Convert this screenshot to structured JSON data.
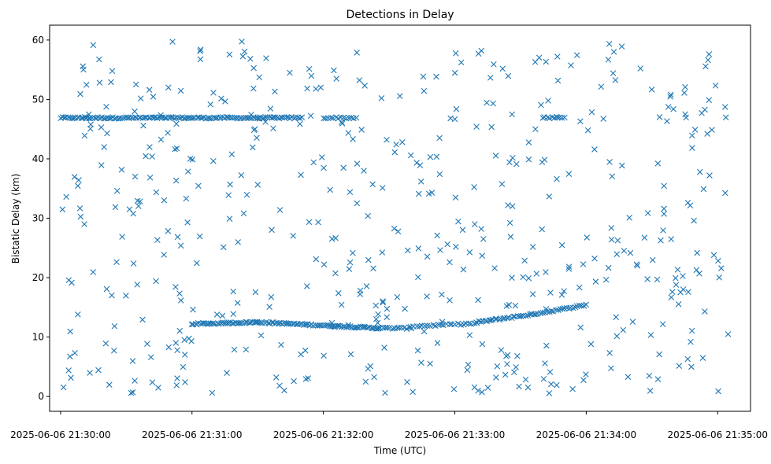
{
  "chart_data": {
    "type": "scatter",
    "title": "Detections in Delay",
    "xlabel": "Time (UTC)",
    "ylabel": "Bistatic Delay (km)",
    "marker": "x",
    "color": "#1f77b4",
    "grid": false,
    "xlim": [
      "2025-06-06 21:29:55",
      "2025-06-06 21:35:15"
    ],
    "ylim": [
      -2.5,
      62.5
    ],
    "xticks": [
      "2025-06-06 21:30:00",
      "2025-06-06 21:31:00",
      "2025-06-06 21:32:00",
      "2025-06-06 21:33:00",
      "2025-06-06 21:34:00",
      "2025-06-06 21:35:00"
    ],
    "yticks": [
      0,
      10,
      20,
      30,
      40,
      50,
      60
    ],
    "series": [
      {
        "tracks": [
          {
            "from": "2025-06-06 21:30:00",
            "to": "2025-06-06 21:31:50",
            "y_start": 46.9,
            "y_end": 46.9,
            "count": 130
          },
          {
            "from": "2025-06-06 21:32:00",
            "to": "2025-06-06 21:32:15",
            "y_start": 46.9,
            "y_end": 46.9,
            "count": 14
          },
          {
            "from": "2025-06-06 21:33:40",
            "to": "2025-06-06 21:33:50",
            "y_start": 46.9,
            "y_end": 46.9,
            "count": 10
          },
          {
            "from": "2025-06-06 21:31:00",
            "to": "2025-06-06 21:31:30",
            "y_start": 12.2,
            "y_end": 12.5,
            "count": 40
          },
          {
            "from": "2025-06-06 21:31:30",
            "to": "2025-06-06 21:32:25",
            "y_start": 12.5,
            "y_end": 11.5,
            "count": 70
          },
          {
            "from": "2025-06-06 21:32:25",
            "to": "2025-06-06 21:32:40",
            "y_start": 11.5,
            "y_end": 11.5,
            "count": 15
          },
          {
            "from": "2025-06-06 21:32:40",
            "to": "2025-06-06 21:33:10",
            "y_start": 11.8,
            "y_end": 12.3,
            "count": 25
          },
          {
            "from": "2025-06-06 21:33:10",
            "to": "2025-06-06 21:33:35",
            "y_start": 12.5,
            "y_end": 13.8,
            "count": 28
          },
          {
            "from": "2025-06-06 21:33:35",
            "to": "2025-06-06 21:34:00",
            "y_start": 13.8,
            "y_end": 15.4,
            "count": 26
          }
        ],
        "noise": {
          "from": "2025-06-06 21:30:00",
          "to": "2025-06-06 21:35:05",
          "y_min": 0.5,
          "y_max": 60,
          "count": 520
        }
      }
    ]
  }
}
